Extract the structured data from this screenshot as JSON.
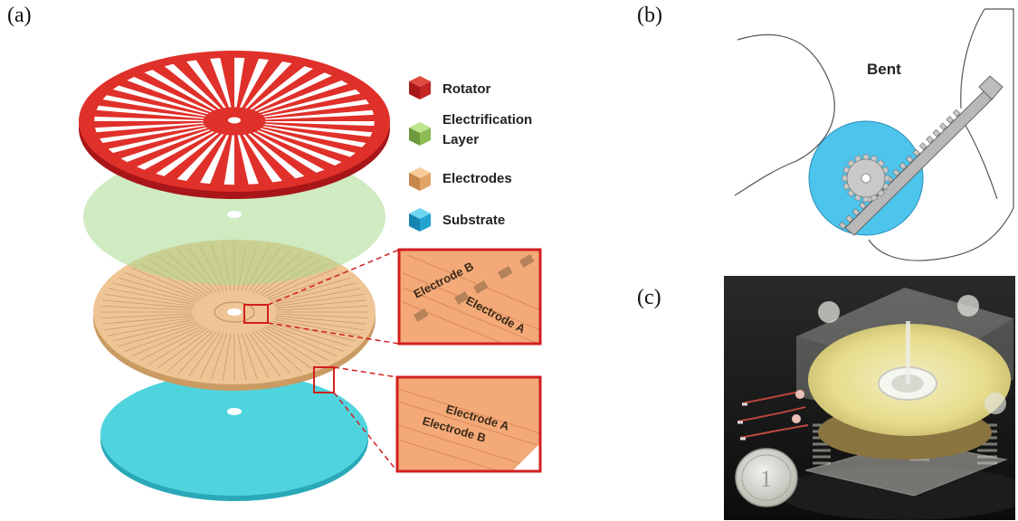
{
  "panels": {
    "a": "(a)",
    "b": "(b)",
    "c": "(c)"
  },
  "legend": [
    {
      "label": "Rotator",
      "color": "#c01818"
    },
    {
      "label": "Electrification\nLayer",
      "color": "#6aa84f"
    },
    {
      "label": "Electrodes",
      "color": "#e6a86a"
    },
    {
      "label": "Substrate",
      "color": "#1a9fd6"
    }
  ],
  "insets": {
    "top": {
      "label_1": "Electrode B",
      "label_2": "Electrode A"
    },
    "bottom": {
      "label_1": "Electrode A",
      "label_2": "Electrode B"
    }
  },
  "panel_b": {
    "label": "Bent"
  },
  "colors": {
    "rotator": "#e0302a",
    "electrification": "#a9d98e",
    "electrodes": "#efc596",
    "substrate": "#4fd4de",
    "inset_border": "#d21f1f",
    "gear_disk": "#4dc4ec"
  }
}
